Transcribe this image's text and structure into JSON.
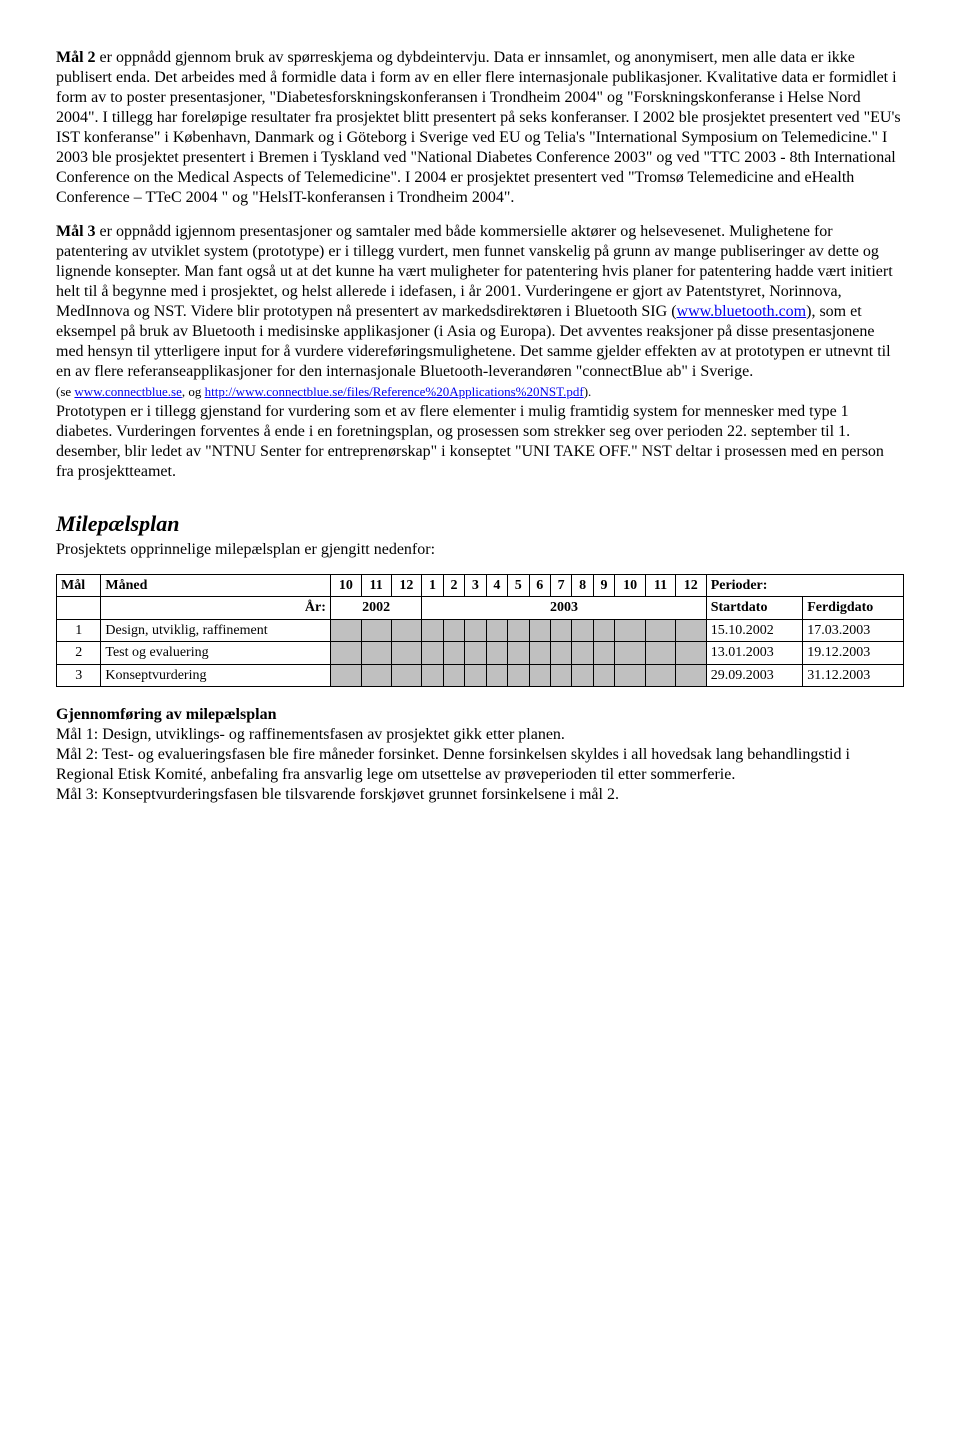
{
  "para1_lead": "Mål 2",
  "para1_rest": " er oppnådd gjennom bruk av spørreskjema og dybdeintervju. Data er innsamlet, og anonymisert, men alle data er ikke publisert enda. Det arbeides med å formidle data i form av en eller flere internasjonale publikasjoner. Kvalitative data er formidlet i form av to poster presentasjoner, \"Diabetesforskningskonferansen i Trondheim 2004\" og \"Forskningskonferanse i Helse Nord 2004\". I tillegg har foreløpige resultater fra prosjektet blitt presentert på seks konferanser. I 2002 ble prosjektet presentert ved \"EU's IST konferanse\" i København, Danmark og i Göteborg i Sverige ved EU og Telia's \"International Symposium on Telemedicine.\" I 2003 ble prosjektet presentert i Bremen i Tyskland ved \"National Diabetes Conference 2003\" og ved \"TTC 2003 - 8th International Conference on the Medical Aspects of Telemedicine\". I 2004 er prosjektet presentert ved \"Tromsø Telemedicine and eHealth Conference – TTeC 2004 \" og \"HelsIT-konferansen i Trondheim 2004\".",
  "para2_lead": "Mål 3",
  "para2_part1": " er oppnådd igjennom presentasjoner og samtaler med både kommersielle aktører og helsevesenet. Mulighetene for patentering av utviklet system (prototype) er i tillegg vurdert, men funnet vanskelig på grunn av mange publiseringer av dette og lignende konsepter. Man fant også ut at det kunne ha vært muligheter for patentering hvis planer for patentering hadde vært initiert helt til å begynne med i prosjektet, og helst allerede i idefasen, i år 2001. Vurderingene er gjort av Patentstyret, Norinnova, MedInnova og NST. Videre blir prototypen nå presentert av markedsdirektøren i Bluetooth SIG (",
  "link1_text": "www.bluetooth.com",
  "para2_part2": "), som et eksempel på bruk av Bluetooth i medisinske applikasjoner (i Asia og Europa). Det avventes reaksjoner på disse presentasjonene med hensyn til ytterligere input for å vurdere videreføringsmulighetene. Det samme gjelder effekten av at prototypen er utnevnt til en av flere referanseapplikasjoner for den internasjonale Bluetooth-leverandøren \"connectBlue ab\" i Sverige.",
  "small_prefix": "(se ",
  "link2_text": "www.connectblue.se",
  "small_mid": ", og ",
  "link3_text": "http://www.connectblue.se/files/Reference%20Applications%20NST.pdf",
  "small_suffix": ").",
  "para2_part3": "Prototypen er i tillegg gjenstand for vurdering som et av flere elementer i mulig framtidig system for mennesker med type 1 diabetes. Vurderingen forventes å ende i en foretningsplan, og prosessen som strekker seg over perioden 22. september til 1. desember, blir ledet av \"NTNU Senter for entreprenørskap\" i konseptet \"UNI TAKE OFF.\" NST deltar i prosessen med en person fra prosjektteamet.",
  "milestone_title": "Milepælsplan",
  "milestone_intro": "Prosjektets opprinnelige milepælsplan er gjengitt nedenfor:",
  "table": {
    "hdr_mal": "Mål",
    "hdr_maned": "Måned",
    "months": [
      "10",
      "11",
      "12",
      "1",
      "2",
      "3",
      "4",
      "5",
      "6",
      "7",
      "8",
      "9",
      "10",
      "11",
      "12"
    ],
    "hdr_perioder": "Perioder:",
    "hdr_ar": "År:",
    "year1": "2002",
    "year2": "2003",
    "hdr_start": "Startdato",
    "hdr_ferdig": "Ferdigdato",
    "rows": [
      {
        "n": "1",
        "label": "Design, utviklig, raffinement",
        "shade_from": 0,
        "shade_to": 14,
        "start": "15.10.2002",
        "end": "17.03.2003"
      },
      {
        "n": "2",
        "label": "Test og evaluering",
        "shade_from": 0,
        "shade_to": 14,
        "start": "13.01.2003",
        "end": "19.12.2003"
      },
      {
        "n": "3",
        "label": "Konseptvurdering",
        "shade_from": 0,
        "shade_to": 14,
        "start": "29.09.2003",
        "end": "31.12.2003"
      }
    ],
    "shaded_bg": "#c0c0c0"
  },
  "gjf_title": "Gjennomføring av milepælsplan",
  "gjf_l1": "Mål 1: Design, utviklings- og raffinementsfasen av prosjektet gikk etter planen.",
  "gjf_l2": "Mål 2: Test- og evalueringsfasen ble fire måneder forsinket. Denne forsinkelsen skyldes i all hovedsak lang behandlingstid i Regional Etisk Komité, anbefaling fra ansvarlig lege om utsettelse av prøveperioden til etter sommerferie.",
  "gjf_l3": "Mål 3: Konseptvurderingsfasen ble tilsvarende forskjøvet grunnet forsinkelsene i mål 2."
}
